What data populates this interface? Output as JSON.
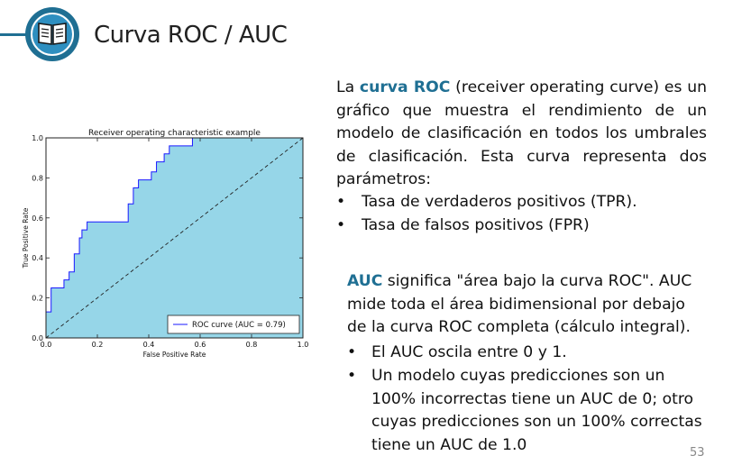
{
  "slide": {
    "title": "Curva ROC / AUC",
    "page_number": "53",
    "logo_icon": "book-icon",
    "accent_color": "#1f6f93"
  },
  "text": {
    "p1_pre": "La ",
    "p1_highlight": "curva ROC",
    "p1_post": " (receiver operating curve) es un gráfico que muestra el rendimiento de un modelo de clasificación en todos los umbrales de clasificación. Esta curva representa dos parámetros:",
    "bullets1": [
      "Tasa de verdaderos positivos (TPR).",
      "Tasa de falsos positivos (FPR)"
    ],
    "p2_highlight": "AUC",
    "p2_post": " significa \"área bajo la curva ROC\". AUC mide toda el área bidimensional por debajo de la curva ROC completa (cálculo integral).",
    "bullets2": [
      "El AUC oscila entre 0 y 1.",
      "Un modelo cuyas predicciones son un 100% incorrectas tiene un AUC de 0; otro cuyas predicciones son un 100% correctas tiene un AUC de 1.0"
    ]
  },
  "chart_data": {
    "type": "area",
    "title": "Receiver operating characteristic example",
    "xlabel": "False Positive Rate",
    "ylabel": "True Positive Rate",
    "xlim": [
      0,
      1
    ],
    "ylim": [
      0,
      1
    ],
    "xticks": [
      "0.0",
      "0.2",
      "0.4",
      "0.6",
      "0.8",
      "1.0"
    ],
    "yticks": [
      "0.0",
      "0.2",
      "0.4",
      "0.6",
      "0.8",
      "1.0"
    ],
    "legend_position": "bottom-right",
    "fill_color": "#96d6e8",
    "line_color": "#1a1aff",
    "series": [
      {
        "name": "ROC curve (AUC = 0.79)",
        "x": [
          0,
          0,
          0.02,
          0.02,
          0.07,
          0.07,
          0.09,
          0.09,
          0.11,
          0.11,
          0.13,
          0.13,
          0.14,
          0.14,
          0.16,
          0.16,
          0.18,
          0.18,
          0.32,
          0.32,
          0.34,
          0.34,
          0.36,
          0.36,
          0.41,
          0.41,
          0.43,
          0.43,
          0.46,
          0.46,
          0.48,
          0.48,
          0.52,
          0.52,
          0.57,
          0.57,
          1.0
        ],
        "y": [
          0,
          0.13,
          0.13,
          0.25,
          0.25,
          0.29,
          0.29,
          0.33,
          0.33,
          0.42,
          0.42,
          0.5,
          0.5,
          0.54,
          0.54,
          0.58,
          0.58,
          0.58,
          0.58,
          0.67,
          0.67,
          0.75,
          0.75,
          0.79,
          0.79,
          0.83,
          0.83,
          0.88,
          0.88,
          0.92,
          0.92,
          0.96,
          0.96,
          0.96,
          0.96,
          1.0,
          1.0
        ]
      },
      {
        "name": "",
        "x": [
          0,
          1
        ],
        "y": [
          0,
          1
        ],
        "style": "dashed"
      }
    ]
  }
}
